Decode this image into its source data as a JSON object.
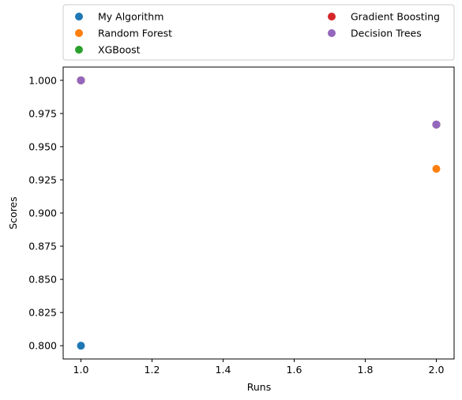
{
  "chart_data": {
    "type": "scatter",
    "xlabel": "Runs",
    "ylabel": "Scores",
    "xlim": [
      0.95,
      2.05
    ],
    "ylim": [
      0.79,
      1.01
    ],
    "xticks": [
      1.0,
      1.2,
      1.4,
      1.6,
      1.8,
      2.0
    ],
    "xtick_labels": [
      "1.0",
      "1.2",
      "1.4",
      "1.6",
      "1.8",
      "2.0"
    ],
    "yticks": [
      0.8,
      0.825,
      0.85,
      0.875,
      0.9,
      0.925,
      0.95,
      0.975,
      1.0
    ],
    "ytick_labels": [
      "0.800",
      "0.825",
      "0.850",
      "0.875",
      "0.900",
      "0.925",
      "0.950",
      "0.975",
      "1.000"
    ],
    "grid": false,
    "legend_position": "top, above plot, two columns",
    "series": [
      {
        "name": "My Algorithm",
        "color": "#1f77b4",
        "x": [
          1,
          2
        ],
        "y": [
          0.8,
          0.9667
        ]
      },
      {
        "name": "Random Forest",
        "color": "#ff7f0e",
        "x": [
          1,
          2
        ],
        "y": [
          1.0,
          0.9333
        ]
      },
      {
        "name": "XGBoost",
        "color": "#2ca02c",
        "x": [
          1,
          2
        ],
        "y": [
          1.0,
          0.9667
        ]
      },
      {
        "name": "Gradient Boosting",
        "color": "#d62728",
        "x": [
          1,
          2
        ],
        "y": [
          1.0,
          0.9667
        ]
      },
      {
        "name": "Decision Trees",
        "color": "#9467bd",
        "x": [
          1,
          2
        ],
        "y": [
          1.0,
          0.9667
        ]
      }
    ]
  }
}
